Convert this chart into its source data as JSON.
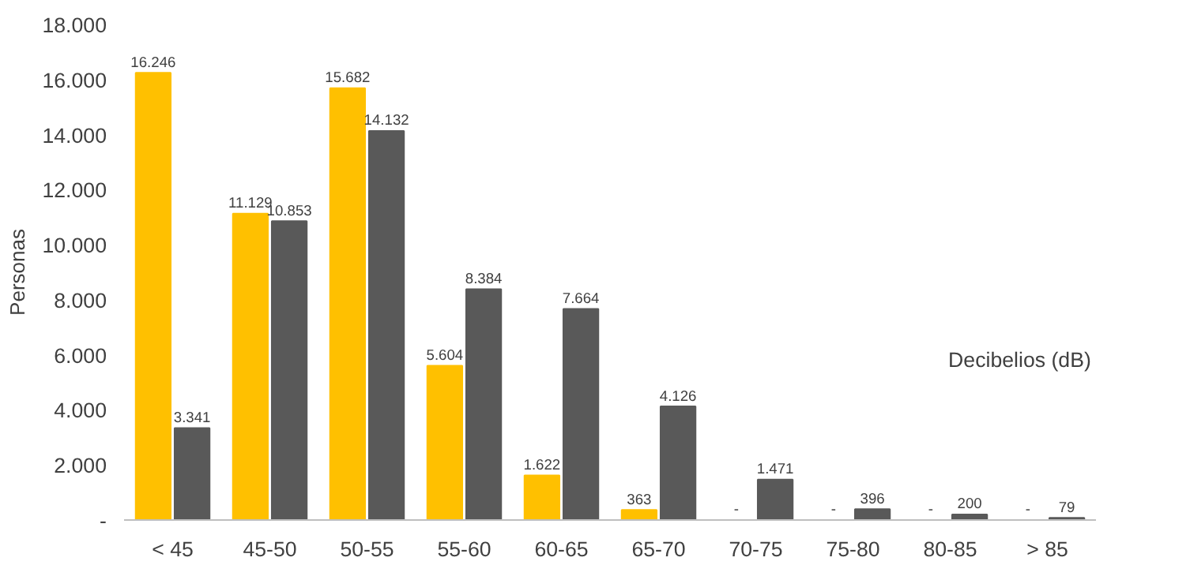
{
  "chart_data": {
    "type": "bar",
    "ylabel": "Personas",
    "xlabel": "Decibelios (dB)",
    "categories": [
      "< 45",
      "45-50",
      "50-55",
      "55-60",
      "60-65",
      "65-70",
      "70-75",
      "75-80",
      "80-85",
      "> 85"
    ],
    "series": [
      {
        "color": "#ffc000",
        "values": [
          16246,
          11129,
          15682,
          5604,
          1622,
          363,
          0,
          0,
          0,
          0
        ],
        "value_labels": [
          "16.246",
          "11.129",
          "15.682",
          "5.604",
          "1.622",
          "363",
          "-",
          "-",
          "-",
          "-"
        ]
      },
      {
        "color": "#595959",
        "values": [
          3341,
          10853,
          14132,
          8384,
          7664,
          4126,
          1471,
          396,
          200,
          79
        ],
        "value_labels": [
          "3.341",
          "10.853",
          "14.132",
          "8.384",
          "7.664",
          "4.126",
          "1.471",
          "396",
          "200",
          "79"
        ]
      }
    ],
    "ylim": [
      0,
      18000
    ],
    "yticks": [
      {
        "value": 0,
        "label": "-"
      },
      {
        "value": 2000,
        "label": "2.000"
      },
      {
        "value": 4000,
        "label": "4.000"
      },
      {
        "value": 6000,
        "label": "6.000"
      },
      {
        "value": 8000,
        "label": "8.000"
      },
      {
        "value": 10000,
        "label": "10.000"
      },
      {
        "value": 12000,
        "label": "12.000"
      },
      {
        "value": 14000,
        "label": "14.000"
      },
      {
        "value": 16000,
        "label": "16.000"
      },
      {
        "value": 18000,
        "label": "18.000"
      }
    ],
    "grid": false
  }
}
